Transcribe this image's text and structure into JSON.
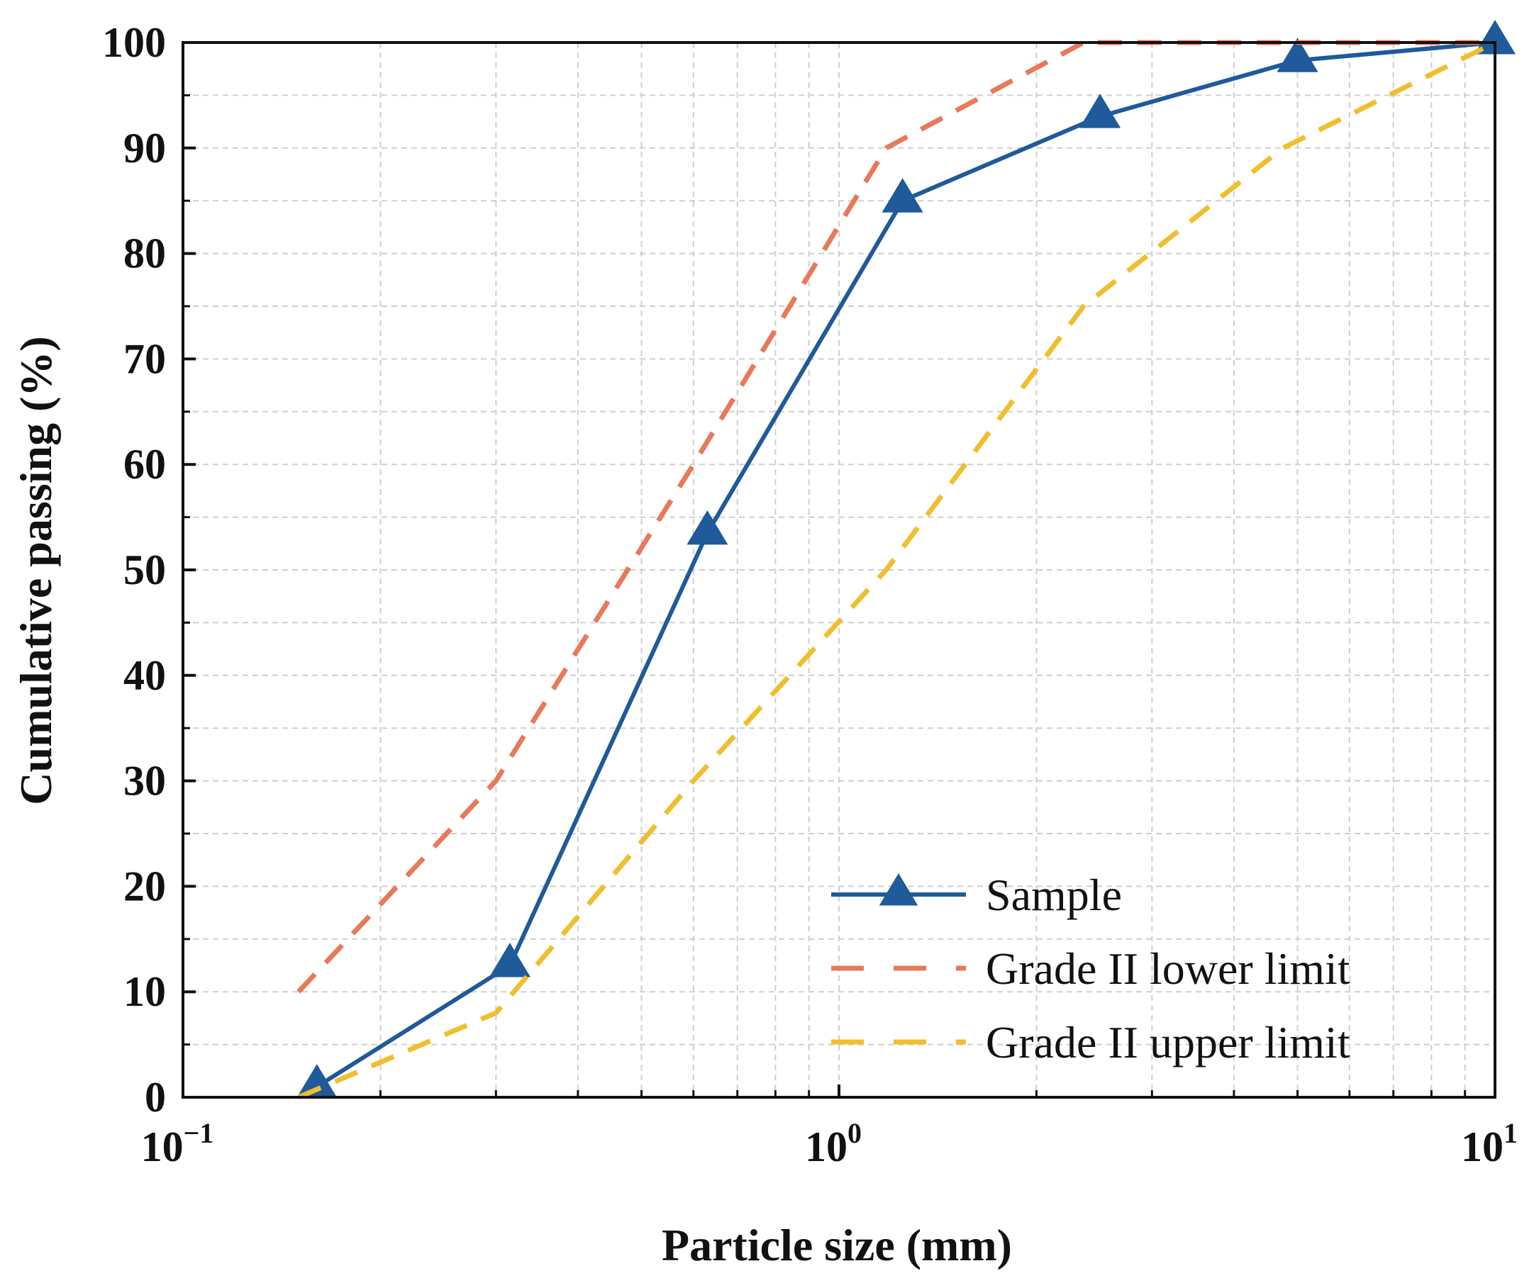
{
  "chart_data": {
    "type": "line",
    "title": "",
    "xlabel": "Particle size (mm)",
    "ylabel": "Cumulative passing (%)",
    "xscale": "log",
    "xlim": [
      0.1,
      10
    ],
    "ylim": [
      0,
      100
    ],
    "grid": true,
    "legend_position": "bottom-right",
    "x_ticks": [
      {
        "base": "10",
        "exp": "−1",
        "value": 0.1
      },
      {
        "base": "10",
        "exp": "0",
        "value": 1
      },
      {
        "base": "10",
        "exp": "1",
        "value": 10
      }
    ],
    "y_ticks": [
      "0",
      "10",
      "20",
      "30",
      "40",
      "50",
      "60",
      "70",
      "80",
      "90",
      "100"
    ],
    "series": [
      {
        "name": "Sample",
        "style": "solid-triangle",
        "color": "#1f5a9a",
        "x": [
          0.16,
          0.315,
          0.63,
          1.25,
          2.5,
          5,
          10
        ],
        "y": [
          1,
          12.5,
          53.5,
          85,
          93,
          98.3,
          100
        ]
      },
      {
        "name": "Grade II lower limit",
        "style": "dashed",
        "color": "#e8795a",
        "x": [
          0.15,
          0.3,
          0.6,
          1.18,
          2.36,
          4.75,
          10
        ],
        "y": [
          10,
          30,
          60,
          90,
          100,
          100,
          100
        ]
      },
      {
        "name": "Grade II upper limit",
        "style": "dashed",
        "color": "#f0be2e",
        "x": [
          0.15,
          0.3,
          0.6,
          1.18,
          2.36,
          4.75,
          10
        ],
        "y": [
          0,
          8,
          30,
          50,
          75,
          90,
          100
        ]
      }
    ]
  }
}
